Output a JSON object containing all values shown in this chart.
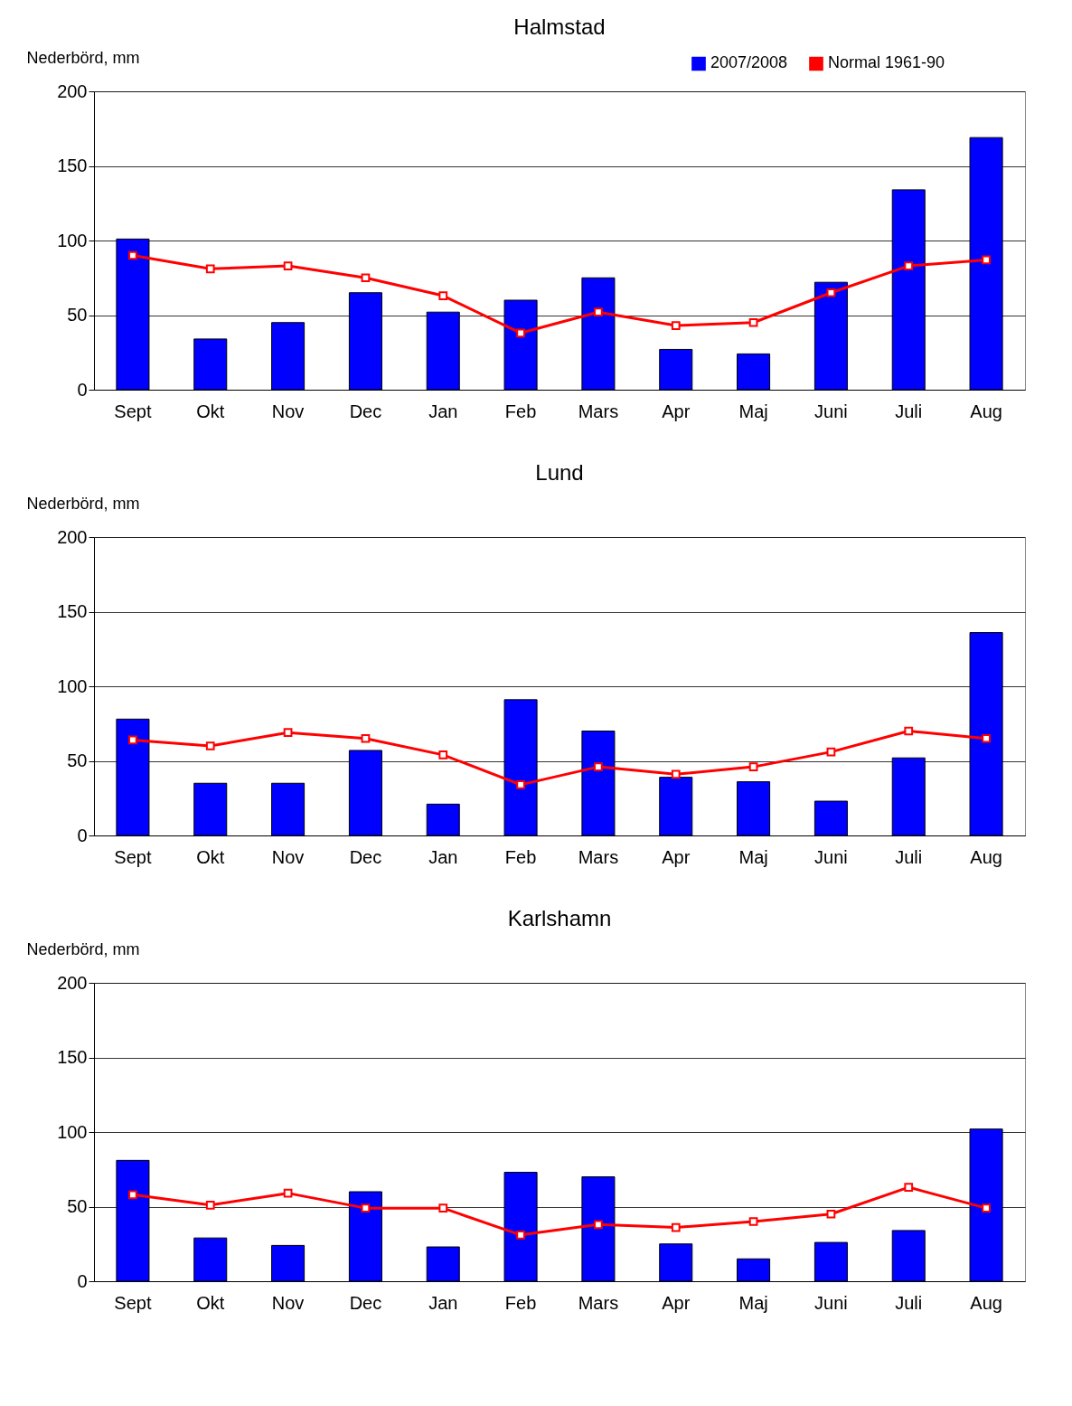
{
  "chart_data": [
    {
      "type": "bar",
      "title": "Halmstad",
      "ylabel": "Nederbörd, mm",
      "categories": [
        "Sept",
        "Okt",
        "Nov",
        "Dec",
        "Jan",
        "Feb",
        "Mars",
        "Apr",
        "Maj",
        "Juni",
        "Juli",
        "Aug"
      ],
      "ylim": [
        0,
        200
      ],
      "yticks": [
        0,
        50,
        100,
        150,
        200
      ],
      "grid": "y",
      "legend": "top right",
      "marker": "square",
      "series": [
        {
          "name": "2007/2008",
          "color": "#0000ff",
          "values": [
            101,
            34,
            45,
            65,
            52,
            60,
            75,
            27,
            24,
            72,
            134,
            169
          ]
        },
        {
          "name": "Normal 1961-90",
          "type": "line",
          "color": "#ff0000",
          "values": [
            90,
            81,
            83,
            75,
            63,
            38,
            52,
            43,
            45,
            65,
            83,
            87
          ]
        }
      ]
    },
    {
      "type": "bar",
      "title": "Lund",
      "ylabel": "Nederbörd, mm",
      "categories": [
        "Sept",
        "Okt",
        "Nov",
        "Dec",
        "Jan",
        "Feb",
        "Mars",
        "Apr",
        "Maj",
        "Juni",
        "Juli",
        "Aug"
      ],
      "ylim": [
        0,
        200
      ],
      "yticks": [
        0,
        50,
        100,
        150,
        200
      ],
      "grid": "y",
      "marker": "square",
      "series": [
        {
          "color": "#0000ff",
          "values": [
            78,
            35,
            35,
            57,
            21,
            91,
            70,
            39,
            36,
            23,
            52,
            136
          ]
        },
        {
          "type": "line",
          "color": "#ff0000",
          "values": [
            64,
            60,
            69,
            65,
            54,
            34,
            46,
            41,
            46,
            56,
            70,
            65
          ]
        }
      ]
    },
    {
      "type": "bar",
      "title": "Karlshamn",
      "ylabel": "Nederbörd, mm",
      "categories": [
        "Sept",
        "Okt",
        "Nov",
        "Dec",
        "Jan",
        "Feb",
        "Mars",
        "Apr",
        "Maj",
        "Juni",
        "Juli",
        "Aug"
      ],
      "ylim": [
        0,
        200
      ],
      "yticks": [
        0,
        50,
        100,
        150,
        200
      ],
      "grid": "y",
      "marker": "square",
      "series": [
        {
          "color": "#0000ff",
          "values": [
            81,
            29,
            24,
            60,
            23,
            73,
            70,
            25,
            15,
            26,
            34,
            102
          ]
        },
        {
          "type": "line",
          "color": "#ff0000",
          "values": [
            58,
            51,
            59,
            49,
            49,
            31,
            38,
            36,
            40,
            45,
            63,
            49
          ]
        }
      ]
    }
  ]
}
